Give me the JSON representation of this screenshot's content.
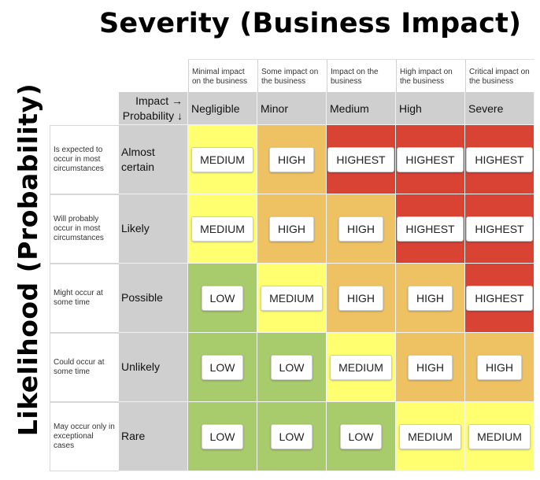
{
  "title": "Severity (Business Impact)",
  "y_title": "Likelihood (Probability)",
  "corner": {
    "line1": "Impact →",
    "line2": "Probability ↓"
  },
  "severity": [
    {
      "desc": "Minimal impact on the business",
      "label": "Negligible"
    },
    {
      "desc": "Some impact on the business",
      "label": "Minor"
    },
    {
      "desc": "Impact on the business",
      "label": "Medium"
    },
    {
      "desc": "High impact on the business",
      "label": "High"
    },
    {
      "desc": "Critical impact on the business",
      "label": "Severe"
    }
  ],
  "likelihood": [
    {
      "desc": "Is expected to occur in most circumstances",
      "label": "Almost certain"
    },
    {
      "desc": "Will probably occur in most circumstances",
      "label": "Likely"
    },
    {
      "desc": "Might occur at some time",
      "label": "Possible"
    },
    {
      "desc": "Could occur at some time",
      "label": "Unlikely"
    },
    {
      "desc": "May occur only in exceptional cases",
      "label": "Rare"
    }
  ],
  "matrix": [
    [
      "MEDIUM",
      "HIGH",
      "HIGHEST",
      "HIGHEST",
      "HIGHEST"
    ],
    [
      "MEDIUM",
      "HIGH",
      "HIGH",
      "HIGHEST",
      "HIGHEST"
    ],
    [
      "LOW",
      "MEDIUM",
      "HIGH",
      "HIGH",
      "HIGHEST"
    ],
    [
      "LOW",
      "LOW",
      "MEDIUM",
      "HIGH",
      "HIGH"
    ],
    [
      "LOW",
      "LOW",
      "LOW",
      "MEDIUM",
      "MEDIUM"
    ]
  ],
  "colors": {
    "LOW": "#a8cb6c",
    "MEDIUM": "#ffff70",
    "HIGH": "#eec262",
    "HIGHEST": "#d84334"
  }
}
